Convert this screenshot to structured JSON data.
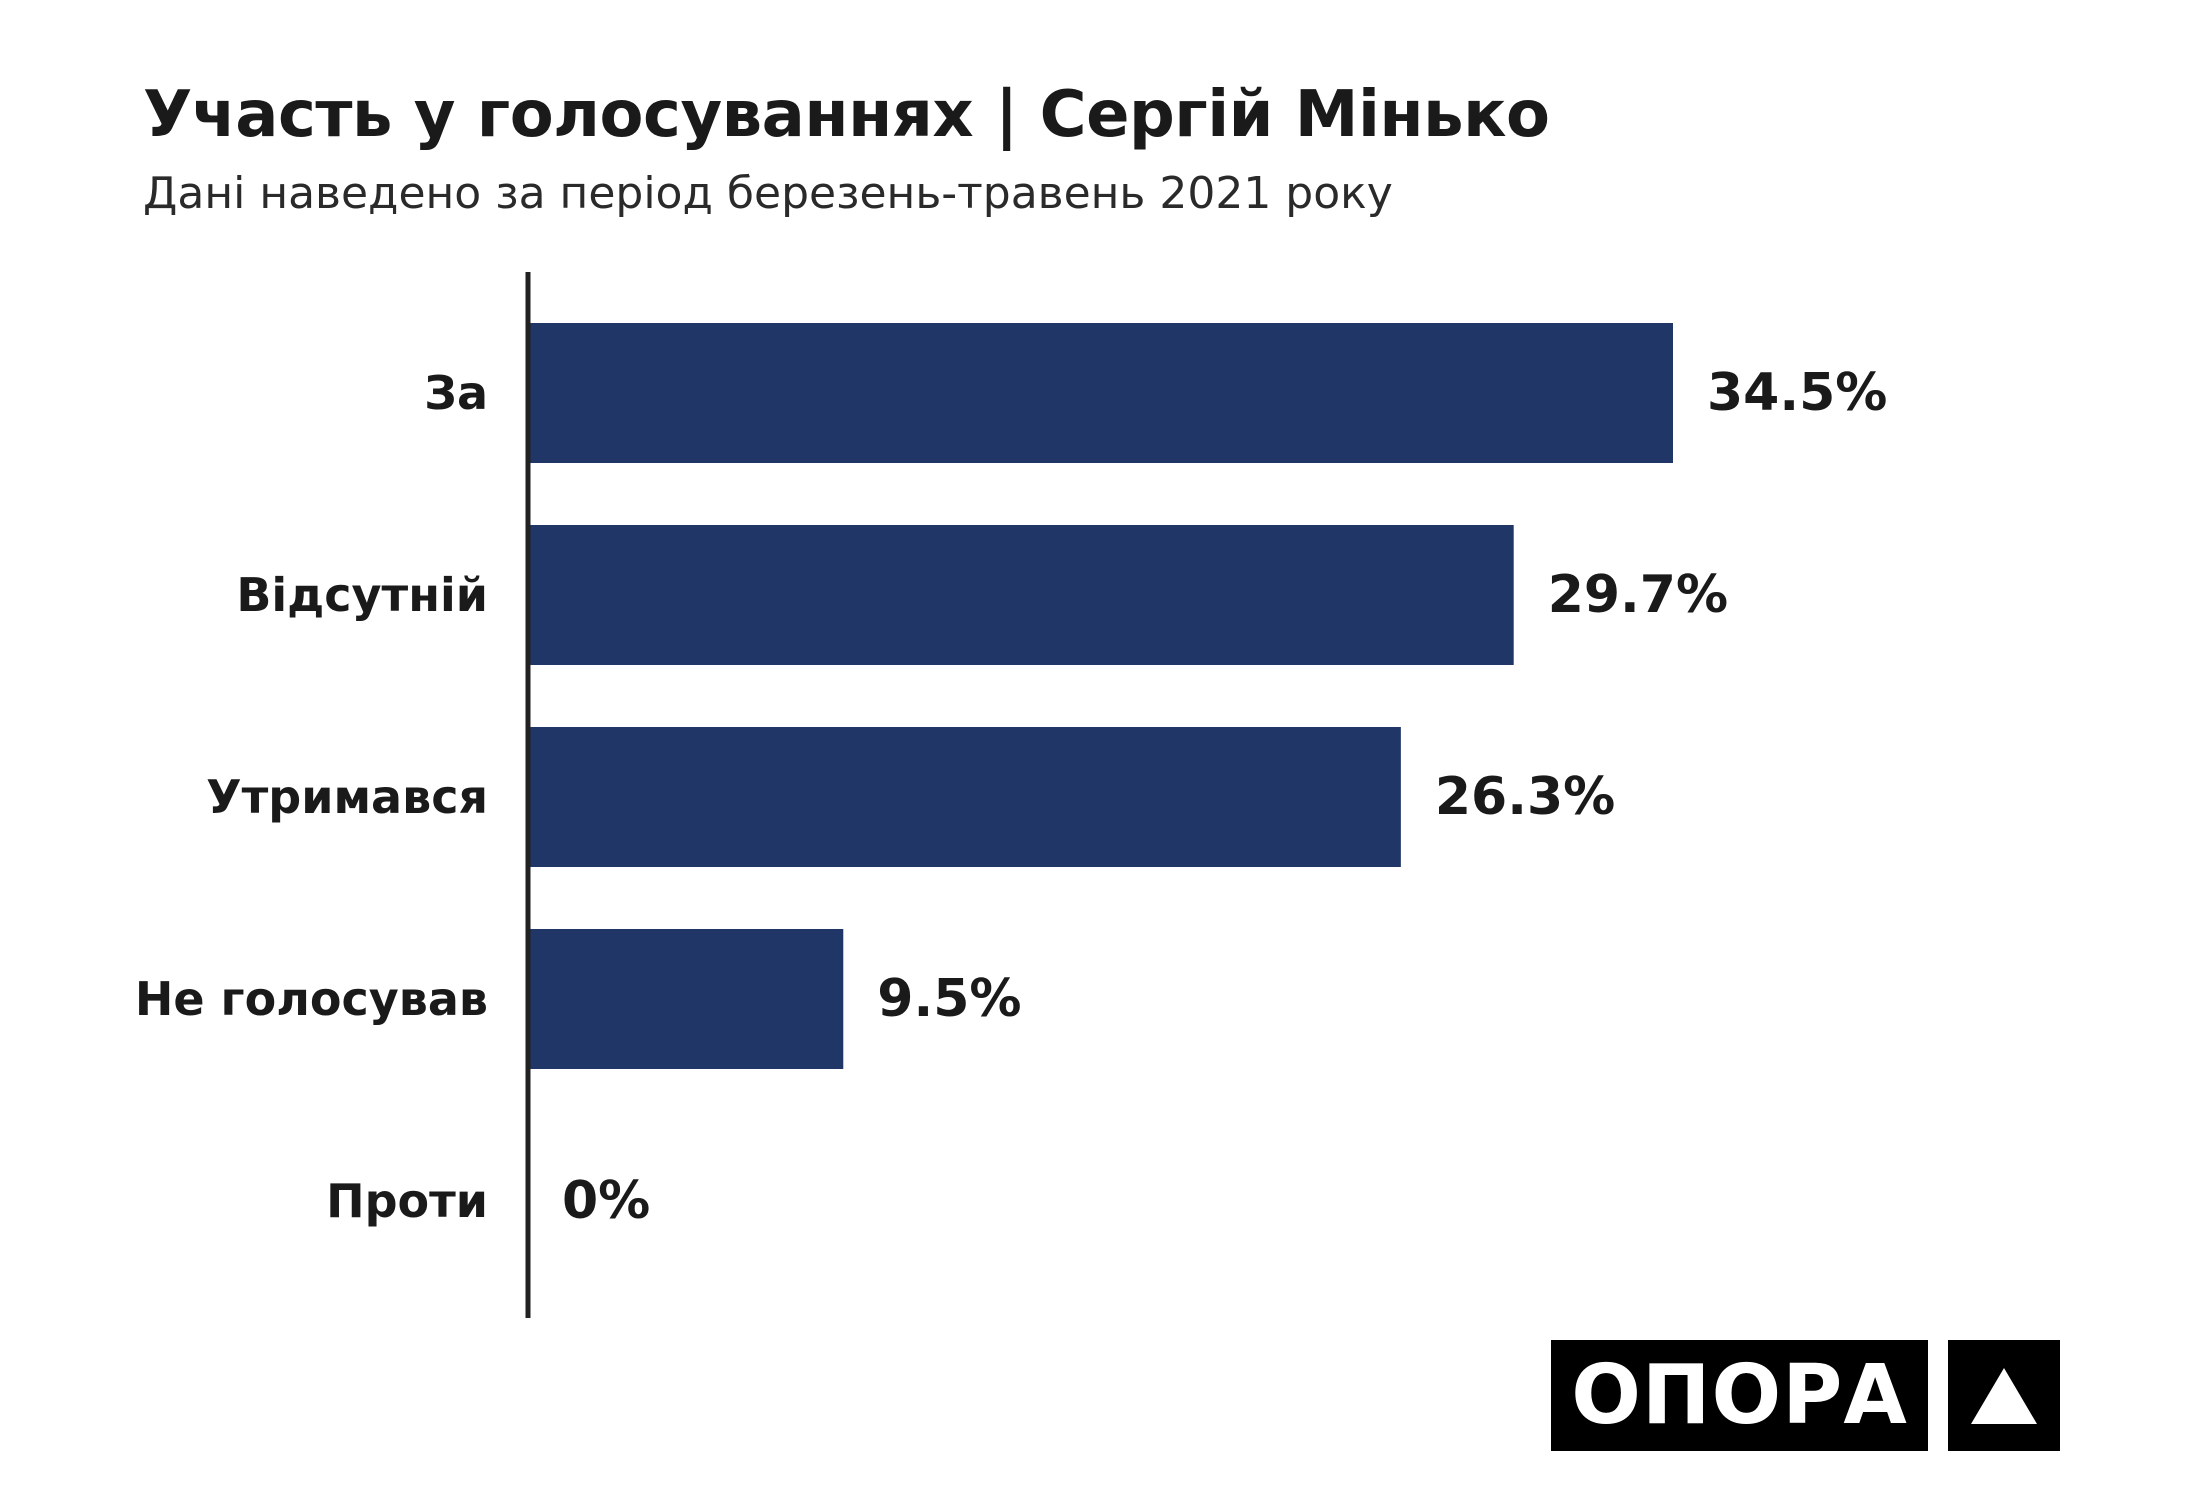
{
  "title": "Участь у голосуваннях | Сергій Мінько",
  "subtitle": "Дані наведено за період березень-травень 2021 року",
  "logo": {
    "text": "ОПОРА",
    "mark_icon": "triangle-icon"
  },
  "colors": {
    "bar": "#1f3666",
    "axis": "#222222",
    "text": "#1a1a1a"
  },
  "chart_data": {
    "type": "bar",
    "orientation": "horizontal",
    "title": "Участь у голосуваннях | Сергій Мінько",
    "subtitle": "Дані наведено за період березень-травень 2021 року",
    "categories": [
      "За",
      "Відсутній",
      "Утримався",
      "Не голосував",
      "Проти"
    ],
    "values": [
      34.5,
      29.7,
      26.3,
      9.5,
      0
    ],
    "value_labels": [
      "34.5%",
      "29.7%",
      "26.3%",
      "9.5%",
      "0%"
    ],
    "unit": "%",
    "xlim": [
      0,
      34.5
    ],
    "grid": false,
    "legend": "none"
  }
}
